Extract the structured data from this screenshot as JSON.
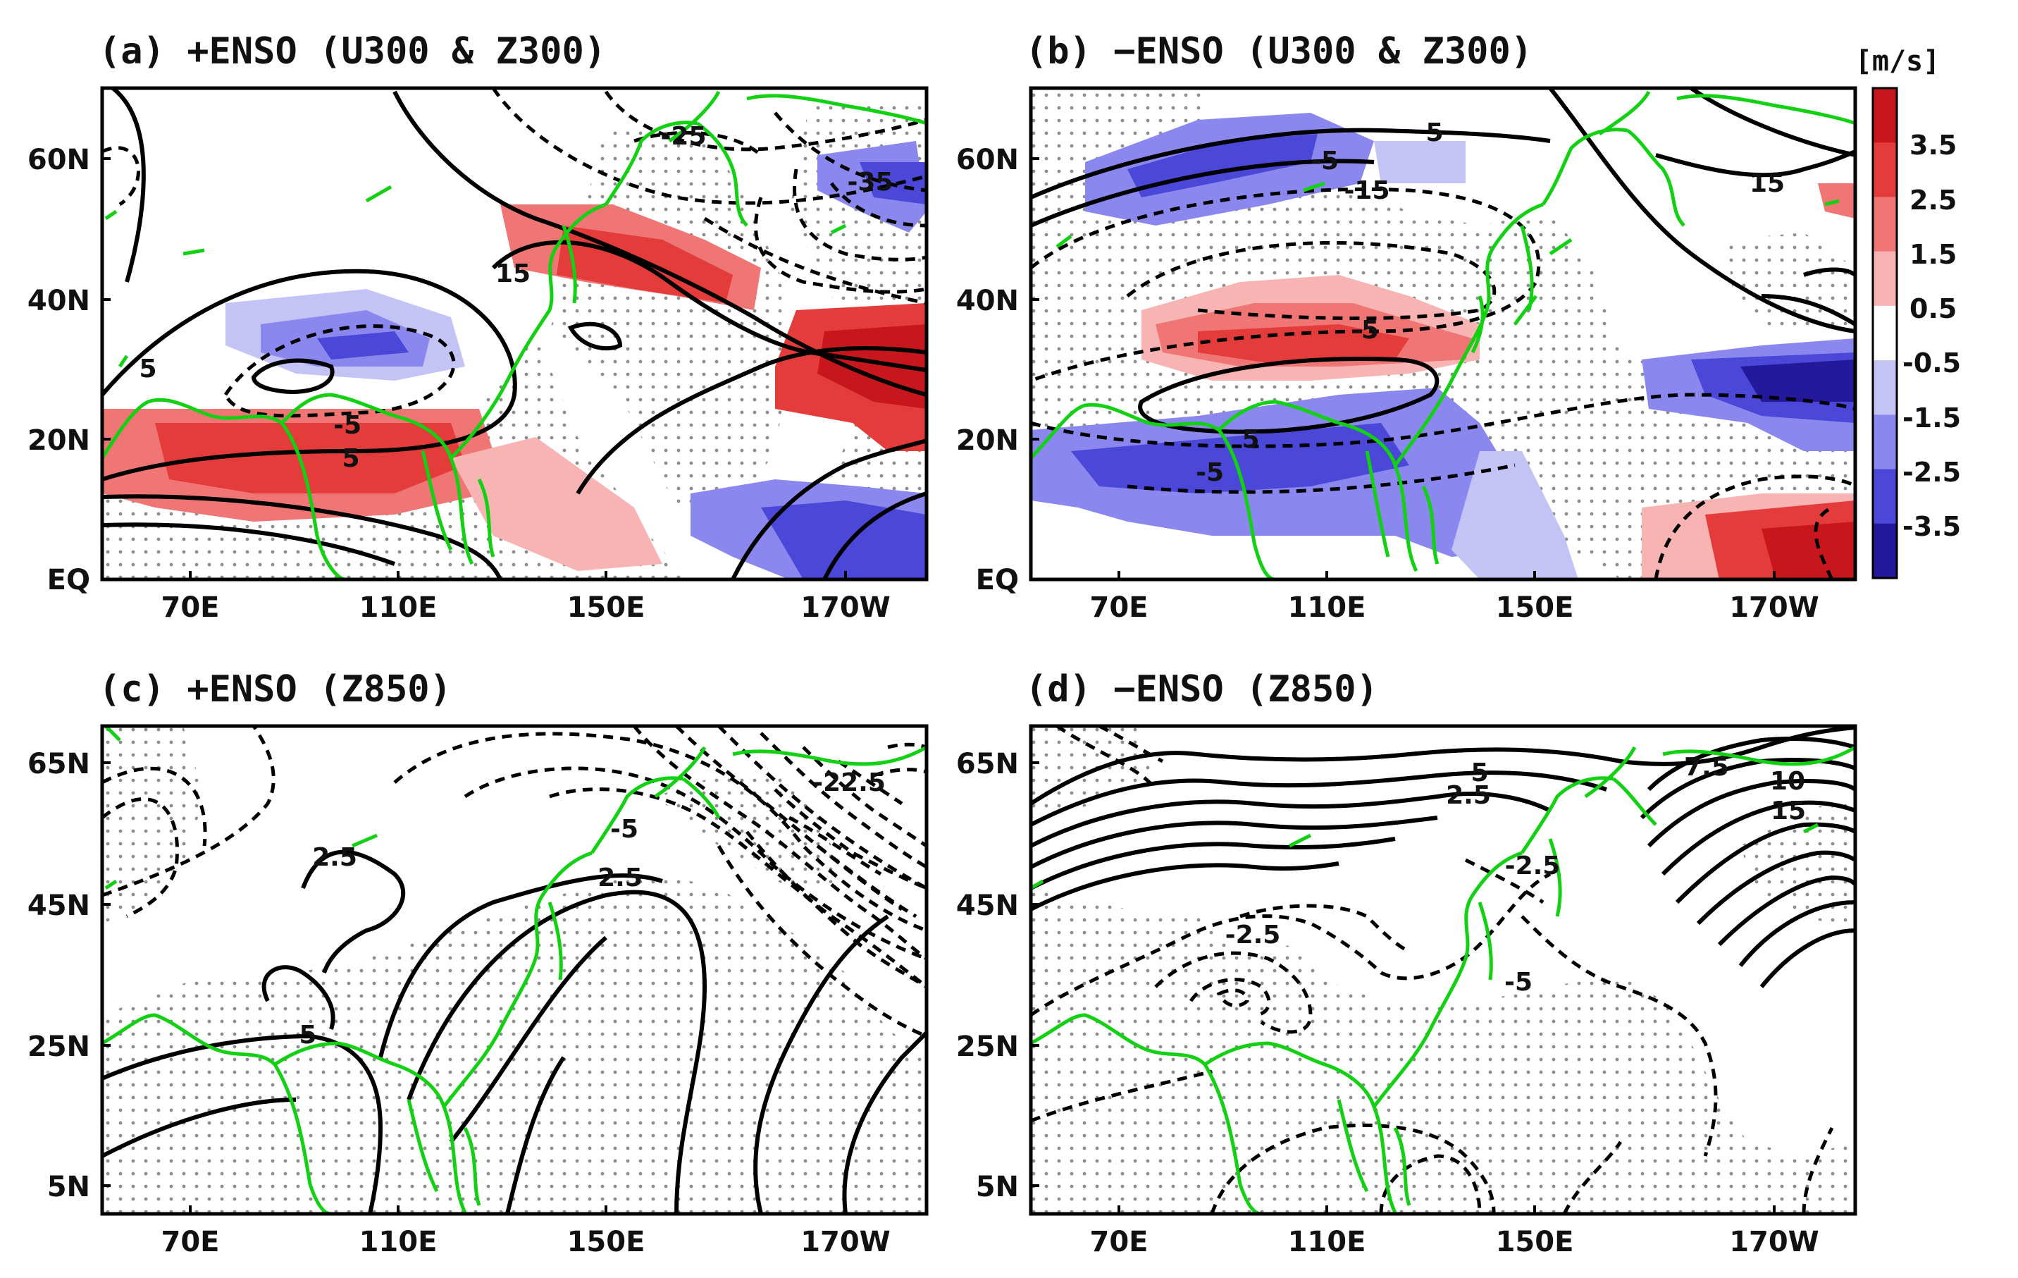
{
  "figure": {
    "panels": [
      {
        "id": "a",
        "title": "(a) +ENSO (U300 & Z300)",
        "x_ticks": [
          "70E",
          "110E",
          "150E",
          "170W"
        ],
        "y_ticks": [
          "60N",
          "40N",
          "20N",
          "EQ"
        ],
        "contour_labels": [
          "-25",
          "-35",
          "15",
          "5",
          "-5",
          "5"
        ]
      },
      {
        "id": "b",
        "title": "(b) −ENSO (U300 & Z300)",
        "x_ticks": [
          "70E",
          "110E",
          "150E",
          "170W"
        ],
        "y_ticks": [
          "60N",
          "40N",
          "20N",
          "EQ"
        ],
        "contour_labels": [
          "5",
          "-5",
          "-15",
          "15",
          "-5",
          "5",
          "-5"
        ]
      },
      {
        "id": "c",
        "title": "(c) +ENSO (Z850)",
        "x_ticks": [
          "70E",
          "110E",
          "150E",
          "170W"
        ],
        "y_ticks": [
          "65N",
          "45N",
          "25N",
          "5N"
        ],
        "contour_labels": [
          "-22.5",
          "-5",
          "2.5",
          "2.5",
          "5"
        ]
      },
      {
        "id": "d",
        "title": "(d) −ENSO (Z850)",
        "x_ticks": [
          "70E",
          "110E",
          "150E",
          "170W"
        ],
        "y_ticks": [
          "65N",
          "45N",
          "25N",
          "5N"
        ],
        "contour_labels": [
          "5",
          "2.5",
          "7.5",
          "10",
          "15",
          "-2.5",
          "-2.5",
          "-5"
        ]
      }
    ],
    "colorbar": {
      "unit": "[m/s]",
      "labels": [
        "3.5",
        "2.5",
        "1.5",
        "0.5",
        "-0.5",
        "-1.5",
        "-2.5",
        "-3.5"
      ],
      "colors": [
        "#c8171c",
        "#e43b3b",
        "#f07575",
        "#f8b3b3",
        "#ffffff",
        "#c3c3f6",
        "#8a88ee",
        "#4b47d8",
        "#24199a"
      ]
    },
    "colors": {
      "coastline": "#12d012",
      "contour": "#000000",
      "positive_shade": "#e8474a",
      "negative_shade": "#5a55e0"
    }
  }
}
